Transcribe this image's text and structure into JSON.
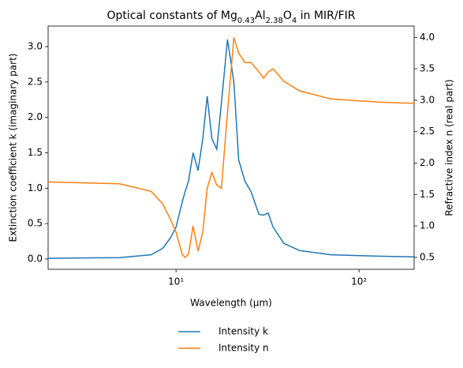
{
  "chart_data": {
    "type": "line",
    "title_parts": [
      {
        "text": "Optical constants of Mg"
      },
      {
        "text": "0.43",
        "sub": true
      },
      {
        "text": "Al"
      },
      {
        "text": "2.38",
        "sub": true
      },
      {
        "text": "O"
      },
      {
        "text": "4",
        "sub": true
      },
      {
        "text": " in MIR/FIR"
      }
    ],
    "xlabel": "Wavelength (μm)",
    "ylabel": "Extinction coefficient k (imaginary part)",
    "y2label": "Refractive index n (real part)",
    "xscale": "log",
    "xlim": [
      2,
      200
    ],
    "xticks": [
      {
        "value": 10,
        "label": "10¹"
      },
      {
        "value": 100,
        "label": "10²"
      }
    ],
    "ylim": [
      -0.145,
      3.29
    ],
    "yticks": [
      {
        "value": 0,
        "label": "0.0"
      },
      0.5,
      {
        "value": 1,
        "label": "1.0"
      },
      1.5,
      {
        "value": 2,
        "label": "2.0"
      },
      2.5,
      {
        "value": 3,
        "label": "3.0"
      }
    ],
    "y2lim": [
      0.31,
      4.18
    ],
    "y2ticks": [
      0.5,
      {
        "value": 1,
        "label": "1.0"
      },
      1.5,
      {
        "value": 2,
        "label": "2.0"
      },
      2.5,
      {
        "value": 3,
        "label": "3.0"
      },
      3.5,
      {
        "value": 4,
        "label": "4.0"
      }
    ],
    "legend": "below",
    "x": [
      2,
      4.92,
      7.3,
      8.46,
      9.33,
      10,
      10.8,
      11.2,
      11.7,
      12.4,
      13.2,
      14,
      14.8,
      15.7,
      16.7,
      17.7,
      19.1,
      20.7,
      22,
      23.8,
      25.7,
      28.4,
      30.1,
      31.9,
      33.9,
      38.9,
      47.3,
      70.2,
      127,
      200
    ],
    "series": [
      {
        "name": "Intensity k",
        "color": "#1f77b4",
        "axis": "y",
        "values": [
          0.01,
          0.02,
          0.06,
          0.15,
          0.3,
          0.45,
          0.8,
          0.95,
          1.1,
          1.5,
          1.25,
          1.7,
          2.3,
          1.7,
          1.55,
          2.2,
          3.1,
          2.5,
          1.4,
          1.1,
          0.95,
          0.63,
          0.62,
          0.65,
          0.45,
          0.22,
          0.12,
          0.06,
          0.04,
          0.03
        ]
      },
      {
        "name": "Intensity n",
        "color": "#ff7f0e",
        "axis": "y2",
        "values": [
          1.7,
          1.67,
          1.55,
          1.35,
          1.1,
          0.9,
          0.55,
          0.5,
          0.55,
          1.0,
          0.6,
          0.9,
          1.6,
          1.85,
          1.65,
          1.6,
          2.8,
          4.0,
          3.75,
          3.6,
          3.6,
          3.45,
          3.35,
          3.45,
          3.5,
          3.3,
          3.15,
          3.02,
          2.97,
          2.95
        ]
      }
    ]
  }
}
